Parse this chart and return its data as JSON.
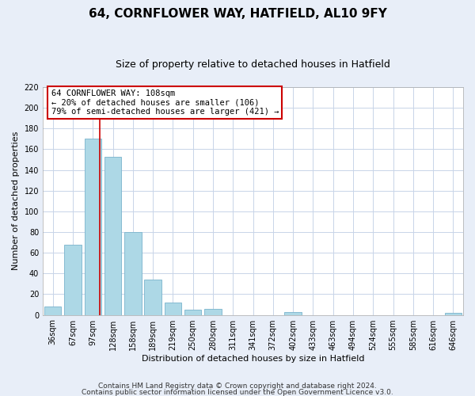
{
  "title": "64, CORNFLOWER WAY, HATFIELD, AL10 9FY",
  "subtitle": "Size of property relative to detached houses in Hatfield",
  "xlabel": "Distribution of detached houses by size in Hatfield",
  "ylabel": "Number of detached properties",
  "bar_labels": [
    "36sqm",
    "67sqm",
    "97sqm",
    "128sqm",
    "158sqm",
    "189sqm",
    "219sqm",
    "250sqm",
    "280sqm",
    "311sqm",
    "341sqm",
    "372sqm",
    "402sqm",
    "433sqm",
    "463sqm",
    "494sqm",
    "524sqm",
    "555sqm",
    "585sqm",
    "616sqm",
    "646sqm"
  ],
  "bar_values": [
    8,
    68,
    170,
    153,
    80,
    34,
    12,
    5,
    6,
    0,
    0,
    0,
    3,
    0,
    0,
    0,
    0,
    0,
    0,
    0,
    2
  ],
  "bar_color": "#add8e6",
  "bar_edge_color": "#7ab4cc",
  "vline_color": "#cc0000",
  "ylim": [
    0,
    220
  ],
  "yticks": [
    0,
    20,
    40,
    60,
    80,
    100,
    120,
    140,
    160,
    180,
    200,
    220
  ],
  "annotation_line1": "64 CORNFLOWER WAY: 108sqm",
  "annotation_line2": "← 20% of detached houses are smaller (106)",
  "annotation_line3": "79% of semi-detached houses are larger (421) →",
  "annotation_box_edge_color": "#cc0000",
  "footer_line1": "Contains HM Land Registry data © Crown copyright and database right 2024.",
  "footer_line2": "Contains public sector information licensed under the Open Government Licence v3.0.",
  "bg_color": "#e8eef8",
  "plot_bg_color": "#ffffff",
  "grid_color": "#c8d4e8",
  "title_fontsize": 11,
  "subtitle_fontsize": 9,
  "tick_fontsize": 7,
  "label_fontsize": 8,
  "footer_fontsize": 6.5
}
